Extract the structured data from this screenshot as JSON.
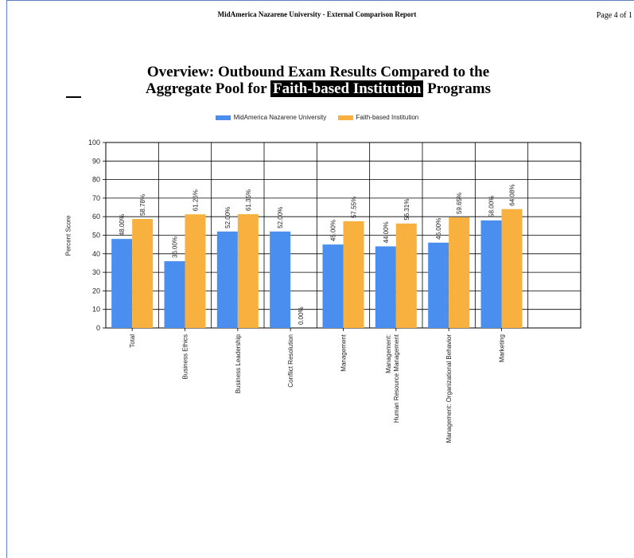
{
  "header": {
    "report_title": "MidAmerica Nazarene University - External Comparison Report",
    "page_label": "Page 4 of 1"
  },
  "title": {
    "line1": "Overview: Outbound Exam Results Compared to the",
    "line2_prefix": "Aggregate Pool for",
    "line2_highlight": "Faith-based Institution",
    "line2_suffix": "Programs"
  },
  "colors": {
    "series1": "#4a8ff0",
    "series2": "#f8b13e",
    "grid": "#000000",
    "frame": "#5b7fc1"
  },
  "chart_data": {
    "type": "bar",
    "ylabel": "Percent Score",
    "ylim": [
      0,
      100
    ],
    "yticks": [
      0,
      10,
      20,
      30,
      40,
      50,
      60,
      70,
      80,
      90,
      100
    ],
    "grid": true,
    "legend_position": "top-center",
    "categories": [
      [
        "Total"
      ],
      [
        "Business Ethics"
      ],
      [
        "Business Leadership"
      ],
      [
        "Conflict Resolution"
      ],
      [
        "Management"
      ],
      [
        "Management:",
        "Human Resource Management"
      ],
      [
        "Management: Organizational Behavior"
      ],
      [
        "Marketing"
      ]
    ],
    "series": [
      {
        "name": "MidAmerica Nazarene University",
        "values": [
          48.0,
          36.0,
          52.0,
          52.0,
          45.0,
          44.0,
          46.0,
          58.0
        ],
        "labels": [
          "48.00%",
          "36.00%",
          "52.00%",
          "52.00%",
          "45.00%",
          "44.00%",
          "46.00%",
          "58.00%"
        ]
      },
      {
        "name": "Faith-based Institution",
        "values": [
          58.78,
          61.26,
          61.35,
          0.0,
          57.55,
          56.31,
          59.65,
          64.08
        ],
        "labels": [
          "58.78%",
          "61.26%",
          "61.35%",
          "0.00%",
          "57.55%",
          "56.31%",
          "59.65%",
          "64.08%"
        ]
      }
    ]
  }
}
